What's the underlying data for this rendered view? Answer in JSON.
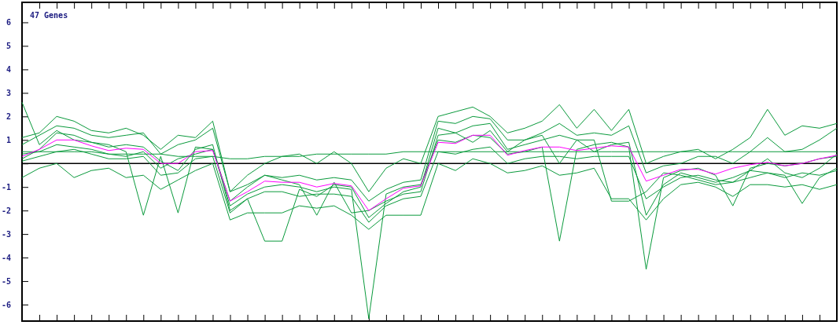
{
  "chart_data": {
    "type": "line",
    "title": "47 Genes",
    "categories": [
      null,
      null,
      null,
      null,
      null,
      null,
      null,
      null,
      null,
      null,
      null,
      null,
      null,
      null,
      null,
      null,
      null,
      null,
      null,
      null,
      null,
      null,
      null,
      null,
      null,
      null,
      null,
      null,
      null,
      null,
      null,
      null,
      null,
      null,
      null,
      null,
      null,
      null,
      null,
      null,
      null,
      null,
      null,
      null,
      null,
      null,
      null,
      null
    ],
    "ylim": [
      -6.7,
      6.85
    ],
    "yticks": [
      -6,
      -5,
      -4,
      -3,
      -2,
      -1,
      {
        "value": 0,
        "label": null
      },
      1,
      2,
      3,
      4,
      5,
      6
    ],
    "grid": false,
    "marker": "none",
    "ref_lines": [
      {
        "axis": "y",
        "value": 0,
        "color": "#000000"
      }
    ],
    "series": [
      {
        "color": "#0a9a3c",
        "values": [
          1.1,
          1.3,
          2.0,
          1.8,
          1.4,
          1.3,
          1.5,
          1.2,
          0.6,
          1.2,
          1.1,
          1.8,
          -1.2,
          -0.5,
          0.0,
          0.3,
          0.4,
          0.0,
          0.5,
          0.0,
          -1.2,
          -0.2,
          0.2,
          0.0,
          2.0,
          2.2,
          2.4,
          2.0,
          1.3,
          1.5,
          1.8,
          2.5,
          1.5,
          2.3,
          1.4,
          2.3,
          0.0,
          0.3,
          0.5,
          0.6,
          0.2,
          0.6,
          1.1,
          2.3,
          1.2,
          1.6,
          1.5,
          1.7
        ]
      },
      {
        "color": "#0a9a3c",
        "values": [
          -0.6,
          -0.2,
          0.0,
          -0.6,
          -0.3,
          -0.2,
          -0.6,
          -0.5,
          -1.1,
          -0.7,
          -0.3,
          0.0,
          -2.4,
          -2.1,
          -2.1,
          -2.1,
          -1.8,
          -1.9,
          -1.8,
          -2.2,
          -2.8,
          -2.2,
          -2.2,
          -2.2,
          0.0,
          -0.3,
          0.2,
          0.0,
          -0.4,
          -0.3,
          -0.1,
          -0.5,
          -0.4,
          -0.2,
          -1.5,
          -1.5,
          -2.4,
          -1.5,
          -0.9,
          -0.8,
          -1.0,
          -1.4,
          -0.9,
          -0.9,
          -1.0,
          -0.9,
          -1.1,
          -0.9
        ]
      },
      {
        "color": "#0a9a3c",
        "values": [
          0.4,
          0.5,
          0.8,
          0.7,
          0.6,
          0.4,
          0.3,
          0.5,
          -0.2,
          0.2,
          0.4,
          0.6,
          -1.8,
          -1.3,
          -1.0,
          -0.9,
          -1.0,
          -1.2,
          -1.0,
          -1.1,
          -6.6,
          -1.3,
          -1.0,
          -0.9,
          1.0,
          0.9,
          1.2,
          1.1,
          0.4,
          0.5,
          0.7,
          -3.3,
          0.6,
          0.8,
          0.9,
          0.7,
          -4.5,
          -0.6,
          -0.3,
          -0.2,
          -0.5,
          -1.8,
          -0.2,
          0.0,
          -0.1,
          0.0,
          0.2,
          0.3
        ]
      },
      {
        "color": "#0a9a3c",
        "values": [
          0.2,
          0.6,
          1.3,
          1.2,
          0.9,
          0.7,
          0.8,
          0.7,
          0.1,
          -0.3,
          0.6,
          0.8,
          -2.0,
          -1.5,
          -3.3,
          -3.3,
          -1.1,
          -1.4,
          -0.9,
          -1.0,
          -2.3,
          -1.7,
          -1.2,
          -1.0,
          1.5,
          1.3,
          1.6,
          1.7,
          0.6,
          0.8,
          1.0,
          1.2,
          1.0,
          1.0,
          -1.6,
          -1.6,
          -1.2,
          -0.4,
          -0.5,
          -0.7,
          -0.9,
          -0.8,
          -0.3,
          -0.4,
          -0.5,
          -1.7,
          -0.6,
          -0.2
        ]
      },
      {
        "color": "#0a9a3c",
        "values": [
          0.5,
          0.5,
          0.5,
          0.5,
          0.5,
          0.4,
          0.4,
          0.4,
          0.4,
          0.3,
          0.3,
          0.3,
          0.2,
          0.2,
          0.3,
          0.3,
          0.3,
          0.4,
          0.4,
          0.4,
          0.4,
          0.4,
          0.5,
          0.5,
          0.5,
          0.5,
          0.5,
          0.5,
          0.5,
          0.5,
          0.5,
          0.5,
          0.5,
          0.5,
          0.5,
          0.5,
          0.5,
          0.5,
          0.5,
          0.5,
          0.5,
          0.5,
          0.5,
          0.5,
          0.5,
          0.5,
          0.5,
          0.5
        ]
      },
      {
        "color": "#0a9a3c",
        "values": [
          2.6,
          0.8,
          1.4,
          1.0,
          0.9,
          0.8,
          0.5,
          -2.2,
          0.3,
          -2.1,
          0.7,
          0.6,
          -1.6,
          -1.0,
          -0.5,
          -0.7,
          -0.9,
          -2.2,
          -0.8,
          -2.1,
          -2.0,
          -1.6,
          -1.3,
          -1.2,
          1.2,
          1.3,
          0.9,
          1.4,
          0.5,
          1.0,
          1.2,
          0.0,
          1.0,
          0.5,
          0.8,
          0.9,
          -2.2,
          -0.9,
          -0.4,
          -0.6,
          -0.8,
          -0.6,
          -0.3,
          0.2,
          -0.4,
          -0.6,
          -0.2,
          0.4
        ]
      },
      {
        "color": "#0a9a3c",
        "values": [
          0.8,
          1.2,
          1.6,
          1.5,
          1.2,
          1.1,
          1.2,
          1.3,
          0.4,
          0.8,
          1.0,
          1.5,
          -1.2,
          -0.9,
          -0.5,
          -0.6,
          -0.5,
          -0.7,
          -0.6,
          -0.7,
          -1.6,
          -1.1,
          -0.8,
          -0.7,
          1.8,
          1.7,
          2.0,
          1.9,
          1.0,
          1.0,
          1.3,
          1.7,
          1.2,
          1.3,
          1.2,
          1.6,
          -0.4,
          -0.1,
          0.0,
          0.3,
          0.3,
          0.0,
          0.5,
          1.1,
          0.5,
          0.6,
          1.0,
          1.5
        ]
      },
      {
        "color": "#0a9a3c",
        "values": [
          0.1,
          0.3,
          0.5,
          0.6,
          0.4,
          0.2,
          0.2,
          0.3,
          -0.5,
          -0.4,
          0.2,
          0.3,
          -2.1,
          -1.5,
          -1.2,
          -1.2,
          -1.4,
          -1.3,
          -1.3,
          -1.4,
          -2.5,
          -1.8,
          -1.5,
          -1.4,
          0.5,
          0.4,
          0.6,
          0.7,
          0.0,
          0.2,
          0.3,
          0.3,
          0.2,
          0.3,
          0.3,
          0.3,
          -1.5,
          -1.0,
          -0.6,
          -0.5,
          -0.7,
          -0.8,
          -0.6,
          -0.4,
          -0.6,
          -0.4,
          -0.5,
          -0.3
        ]
      },
      {
        "color": "#ff00ff",
        "values": [
          0.3,
          0.6,
          1.0,
          1.0,
          0.75,
          0.55,
          0.65,
          0.6,
          0.0,
          0.0,
          0.5,
          0.55,
          -1.6,
          -1.2,
          -0.75,
          -0.8,
          -0.8,
          -1.0,
          -0.85,
          -0.95,
          -2.0,
          -1.5,
          -1.05,
          -0.95,
          0.9,
          0.85,
          1.2,
          1.2,
          0.35,
          0.55,
          0.7,
          0.7,
          0.55,
          0.65,
          0.75,
          0.7,
          -0.75,
          -0.5,
          -0.25,
          -0.25,
          -0.45,
          -0.2,
          -0.05,
          0.05,
          -0.1,
          0.0,
          0.2,
          0.35
        ]
      }
    ]
  }
}
